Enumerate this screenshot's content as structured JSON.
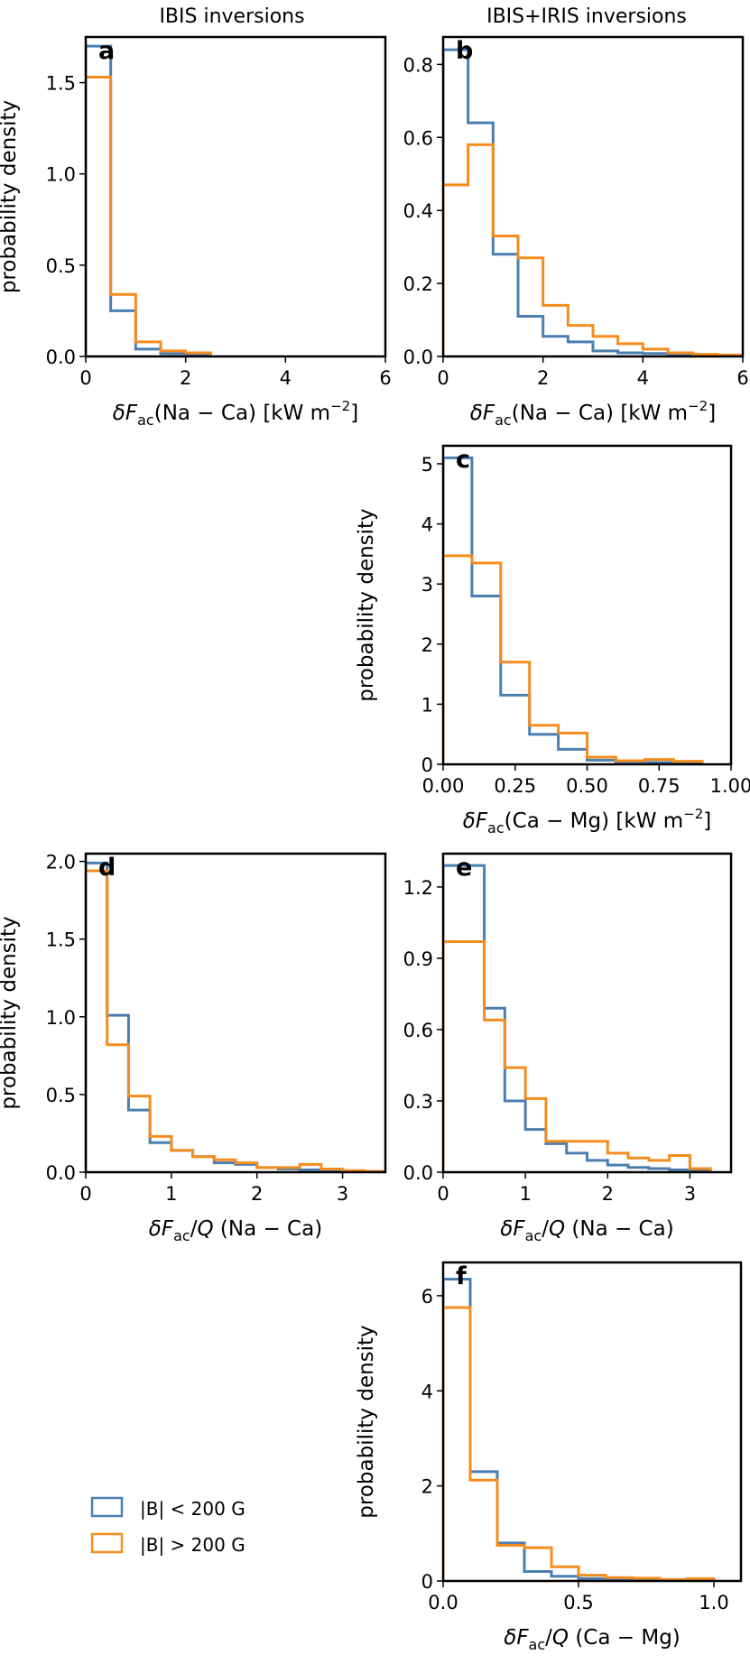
{
  "figure": {
    "column_titles": [
      "IBIS inversions",
      "IBIS+IRIS inversions"
    ]
  },
  "legend": {
    "items": [
      {
        "label": "|B| < 200 G",
        "color": "#4a7fb0"
      },
      {
        "label": "|B| > 200 G",
        "color": "#f58c1e"
      }
    ]
  },
  "chart_data": [
    {
      "type": "histogram",
      "panel": "a",
      "title": "IBIS inversions",
      "xlabel": "δF_ac(Na − Ca) [kW m^-2]",
      "ylabel": "probability density",
      "xlim": [
        0,
        6
      ],
      "ylim": [
        0,
        1.75
      ],
      "xticks": [
        0,
        2,
        4,
        6
      ],
      "xtick_labels": [
        "0",
        "2",
        "4",
        "6"
      ],
      "yticks": [
        0,
        0.5,
        1.0,
        1.5
      ],
      "ytick_labels": [
        "0.0",
        "0.5",
        "1.0",
        "1.5"
      ],
      "bin_edges": [
        0,
        0.5,
        1.0,
        1.5,
        2.0,
        2.5
      ],
      "series": [
        {
          "name": "|B| < 200 G",
          "color": "#4a7fb0",
          "values": [
            1.7,
            0.25,
            0.04,
            0.015,
            0.01
          ]
        },
        {
          "name": "|B| > 200 G",
          "color": "#f58c1e",
          "values": [
            1.53,
            0.34,
            0.08,
            0.03,
            0.02
          ]
        }
      ]
    },
    {
      "type": "histogram",
      "panel": "b",
      "title": "IBIS+IRIS inversions",
      "xlabel": "δF_ac(Na − Ca) [kW m^-2]",
      "ylabel": "",
      "xlim": [
        0,
        6
      ],
      "ylim": [
        0,
        0.875
      ],
      "xticks": [
        0,
        2,
        4,
        6
      ],
      "xtick_labels": [
        "0",
        "2",
        "4",
        "6"
      ],
      "yticks": [
        0,
        0.2,
        0.4,
        0.6,
        0.8
      ],
      "ytick_labels": [
        "0.0",
        "0.2",
        "0.4",
        "0.6",
        "0.8"
      ],
      "bin_edges": [
        0,
        0.5,
        1.0,
        1.5,
        2.0,
        2.5,
        3.0,
        3.5,
        4.0,
        4.5,
        5.0,
        5.5,
        6.0
      ],
      "series": [
        {
          "name": "|B| < 200 G",
          "color": "#4a7fb0",
          "values": [
            0.84,
            0.64,
            0.28,
            0.11,
            0.055,
            0.04,
            0.015,
            0.01,
            0.008,
            0.005,
            0.003,
            0.002
          ]
        },
        {
          "name": "|B| > 200 G",
          "color": "#f58c1e",
          "values": [
            0.47,
            0.58,
            0.33,
            0.27,
            0.14,
            0.085,
            0.055,
            0.035,
            0.02,
            0.01,
            0.006,
            0.004
          ]
        }
      ]
    },
    {
      "type": "histogram",
      "panel": "c",
      "xlabel": "δF_ac(Ca − Mg) [kW m^-2]",
      "ylabel": "probability density",
      "xlim": [
        0,
        1.0
      ],
      "ylim": [
        0,
        5.3
      ],
      "xticks": [
        0,
        0.25,
        0.5,
        0.75,
        1.0
      ],
      "xtick_labels": [
        "0.00",
        "0.25",
        "0.50",
        "0.75",
        "1.00"
      ],
      "yticks": [
        0,
        1,
        2,
        3,
        4,
        5
      ],
      "ytick_labels": [
        "0",
        "1",
        "2",
        "3",
        "4",
        "5"
      ],
      "bin_edges": [
        0,
        0.1,
        0.2,
        0.3,
        0.4,
        0.5,
        0.6,
        0.7,
        0.8,
        0.9
      ],
      "series": [
        {
          "name": "|B| < 200 G",
          "color": "#4a7fb0",
          "values": [
            5.1,
            2.8,
            1.15,
            0.5,
            0.25,
            0.07,
            0.04,
            0.03,
            0.02
          ]
        },
        {
          "name": "|B| > 200 G",
          "color": "#f58c1e",
          "values": [
            3.47,
            3.35,
            1.7,
            0.65,
            0.52,
            0.12,
            0.06,
            0.08,
            0.05
          ]
        }
      ]
    },
    {
      "type": "histogram",
      "panel": "d",
      "xlabel": "δF_ac/Q (Na − Ca)",
      "ylabel": "probability density",
      "xlim": [
        0,
        3.5
      ],
      "ylim": [
        0,
        2.05
      ],
      "xticks": [
        0,
        1,
        2,
        3
      ],
      "xtick_labels": [
        "0",
        "1",
        "2",
        "3"
      ],
      "yticks": [
        0,
        0.5,
        1.0,
        1.5,
        2.0
      ],
      "ytick_labels": [
        "0.0",
        "0.5",
        "1.0",
        "1.5",
        "2.0"
      ],
      "bin_edges": [
        0,
        0.25,
        0.5,
        0.75,
        1.0,
        1.25,
        1.5,
        1.75,
        2.0,
        2.25,
        2.5,
        2.75,
        3.0,
        3.25,
        3.5
      ],
      "series": [
        {
          "name": "|B| < 200 G",
          "color": "#4a7fb0",
          "values": [
            1.99,
            1.01,
            0.4,
            0.19,
            0.14,
            0.1,
            0.06,
            0.05,
            0.03,
            0.02,
            0.015,
            0.01,
            0.008,
            0.005
          ]
        },
        {
          "name": "|B| > 200 G",
          "color": "#f58c1e",
          "values": [
            1.94,
            0.82,
            0.49,
            0.23,
            0.14,
            0.1,
            0.08,
            0.06,
            0.03,
            0.03,
            0.05,
            0.02,
            0.01,
            0.005
          ]
        }
      ]
    },
    {
      "type": "histogram",
      "panel": "e",
      "xlabel": "δF_ac/Q (Na − Ca)",
      "ylabel": "",
      "xlim": [
        0,
        3.5
      ],
      "ylim": [
        0,
        1.34
      ],
      "xticks": [
        0,
        1,
        2,
        3
      ],
      "xtick_labels": [
        "0",
        "1",
        "2",
        "3"
      ],
      "yticks": [
        0,
        0.3,
        0.6,
        0.9,
        1.2
      ],
      "ytick_labels": [
        "0.0",
        "0.3",
        "0.6",
        "0.9",
        "1.2"
      ],
      "bin_edges": [
        0,
        0.25,
        0.5,
        0.75,
        1.0,
        1.25,
        1.5,
        1.75,
        2.0,
        2.25,
        2.5,
        2.75,
        3.0,
        3.25
      ],
      "series": [
        {
          "name": "|B| < 200 G",
          "color": "#4a7fb0",
          "values": [
            1.29,
            1.29,
            0.69,
            0.3,
            0.18,
            0.12,
            0.08,
            0.05,
            0.03,
            0.02,
            0.015,
            0.01,
            0.005
          ]
        },
        {
          "name": "|B| > 200 G",
          "color": "#f58c1e",
          "values": [
            0.97,
            0.97,
            0.64,
            0.44,
            0.31,
            0.13,
            0.13,
            0.13,
            0.08,
            0.06,
            0.05,
            0.07,
            0.015
          ]
        }
      ]
    },
    {
      "type": "histogram",
      "panel": "f",
      "xlabel": "δF_ac/Q (Ca − Mg)",
      "ylabel": "probability density",
      "xlim": [
        0,
        1.1
      ],
      "ylim": [
        0,
        6.7
      ],
      "xticks": [
        0,
        0.5,
        1.0
      ],
      "xtick_labels": [
        "0.0",
        "0.5",
        "1.0"
      ],
      "yticks": [
        0,
        2,
        4,
        6
      ],
      "ytick_labels": [
        "0",
        "2",
        "4",
        "6"
      ],
      "bin_edges": [
        0,
        0.1,
        0.2,
        0.3,
        0.4,
        0.5,
        0.6,
        0.7,
        0.8,
        0.9,
        1.0
      ],
      "series": [
        {
          "name": "|B| < 200 G",
          "color": "#4a7fb0",
          "values": [
            6.35,
            2.3,
            0.8,
            0.2,
            0.1,
            0.05,
            0.03,
            0.02,
            0.015,
            0.01
          ]
        },
        {
          "name": "|B| > 200 G",
          "color": "#f58c1e",
          "values": [
            5.75,
            2.12,
            0.75,
            0.7,
            0.3,
            0.12,
            0.07,
            0.06,
            0.03,
            0.05
          ]
        }
      ]
    }
  ]
}
